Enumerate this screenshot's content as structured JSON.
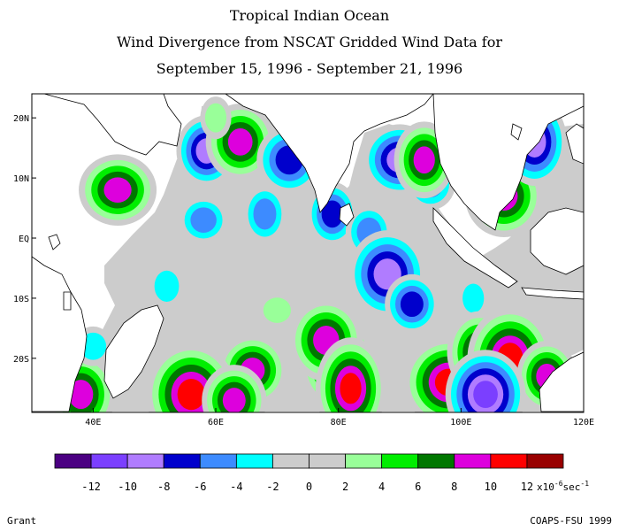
{
  "header": {
    "line1": "Tropical Indian Ocean",
    "line2": "Wind Divergence from NSCAT Gridded Wind Data for",
    "line3": "September 15, 1996 - September 21, 1996"
  },
  "footer": {
    "left": "Grant",
    "right": "COAPS-FSU 1999"
  },
  "chart_data": {
    "type": "heatmap",
    "title": "Wind Divergence from NSCAT Gridded Wind Data for September 15, 1996 - September 21, 1996",
    "x_axis": {
      "ticks": [
        40,
        60,
        80,
        100,
        120
      ],
      "tick_labels": [
        "40E",
        "60E",
        "80E",
        "100E",
        "120E"
      ],
      "range": [
        30,
        120
      ]
    },
    "y_axis": {
      "ticks": [
        20,
        10,
        0,
        -10,
        -20
      ],
      "tick_labels": [
        "20N",
        "10N",
        "EQ",
        "10S",
        "20S"
      ],
      "range": [
        -29,
        24
      ]
    },
    "colorbar": {
      "bins": [
        {
          "color": "#4b0082"
        },
        {
          "color": "#7b3fff"
        },
        {
          "color": "#b07cff"
        },
        {
          "color": "#0000cc"
        },
        {
          "color": "#3d8bff"
        },
        {
          "color": "#00ffff"
        },
        {
          "color": "#cccccc"
        },
        {
          "color": "#cccccc"
        },
        {
          "color": "#99ff99"
        },
        {
          "color": "#00ee00"
        },
        {
          "color": "#007700"
        },
        {
          "color": "#dd00dd"
        },
        {
          "color": "#ff0000"
        },
        {
          "color": "#990000"
        }
      ],
      "tick_values": [
        -12,
        -10,
        -8,
        -6,
        -4,
        -2,
        0,
        2,
        4,
        6,
        8,
        10,
        12
      ],
      "tick_labels": [
        "-12",
        "-10",
        "-8",
        "-6",
        "-4",
        "-2",
        "0",
        "2",
        "4",
        "6",
        "8",
        "10",
        "12"
      ],
      "units": {
        "base": "x10",
        "exp": "-6",
        "unit": "sec",
        "unit_exp": "-1"
      }
    },
    "features": [
      {
        "lon": 58.5,
        "lat": 14.5,
        "level": -10
      },
      {
        "lon": 64,
        "lat": 16,
        "level": 10
      },
      {
        "lon": 72,
        "lat": 13,
        "level": -8
      },
      {
        "lon": 68,
        "lat": 4,
        "level": -6
      },
      {
        "lon": 58,
        "lat": 3,
        "level": -6
      },
      {
        "lon": 79,
        "lat": 4,
        "level": -8
      },
      {
        "lon": 85,
        "lat": 1,
        "level": -6
      },
      {
        "lon": 88,
        "lat": -6,
        "level": -10
      },
      {
        "lon": 92,
        "lat": -11,
        "level": -8
      },
      {
        "lon": 95,
        "lat": 9,
        "level": -6
      },
      {
        "lon": 102,
        "lat": -10,
        "level": -4
      },
      {
        "lon": 52,
        "lat": -8,
        "level": -4
      },
      {
        "lon": 44,
        "lat": 8,
        "level": 10
      },
      {
        "lon": 80,
        "lat": -21,
        "level": 12
      },
      {
        "lon": 78,
        "lat": -17,
        "level": 10
      },
      {
        "lon": 82,
        "lat": -25,
        "level": 12
      },
      {
        "lon": 66,
        "lat": -22,
        "level": 10
      },
      {
        "lon": 98,
        "lat": -24,
        "level": 12
      },
      {
        "lon": 103,
        "lat": -19,
        "level": 10
      },
      {
        "lon": 108,
        "lat": -20,
        "level": 12
      },
      {
        "lon": 114,
        "lat": -23,
        "level": 10
      },
      {
        "lon": 104,
        "lat": -26,
        "level": -12
      },
      {
        "lon": 107,
        "lat": 7,
        "level": 10
      },
      {
        "lon": 112,
        "lat": 16,
        "level": -10
      },
      {
        "lon": 90,
        "lat": 13,
        "level": -10
      },
      {
        "lon": 94,
        "lat": 13,
        "level": 10
      },
      {
        "lon": 38,
        "lat": -26,
        "level": 10
      },
      {
        "lon": 56,
        "lat": -26,
        "level": 12
      },
      {
        "lon": 63,
        "lat": -27,
        "level": 10
      },
      {
        "lon": 40,
        "lat": -18,
        "level": -4
      },
      {
        "lon": 60,
        "lat": 20,
        "level": 4
      },
      {
        "lon": 100,
        "lat": 15,
        "level": 4
      },
      {
        "lon": 70,
        "lat": -12,
        "level": 4
      }
    ]
  }
}
